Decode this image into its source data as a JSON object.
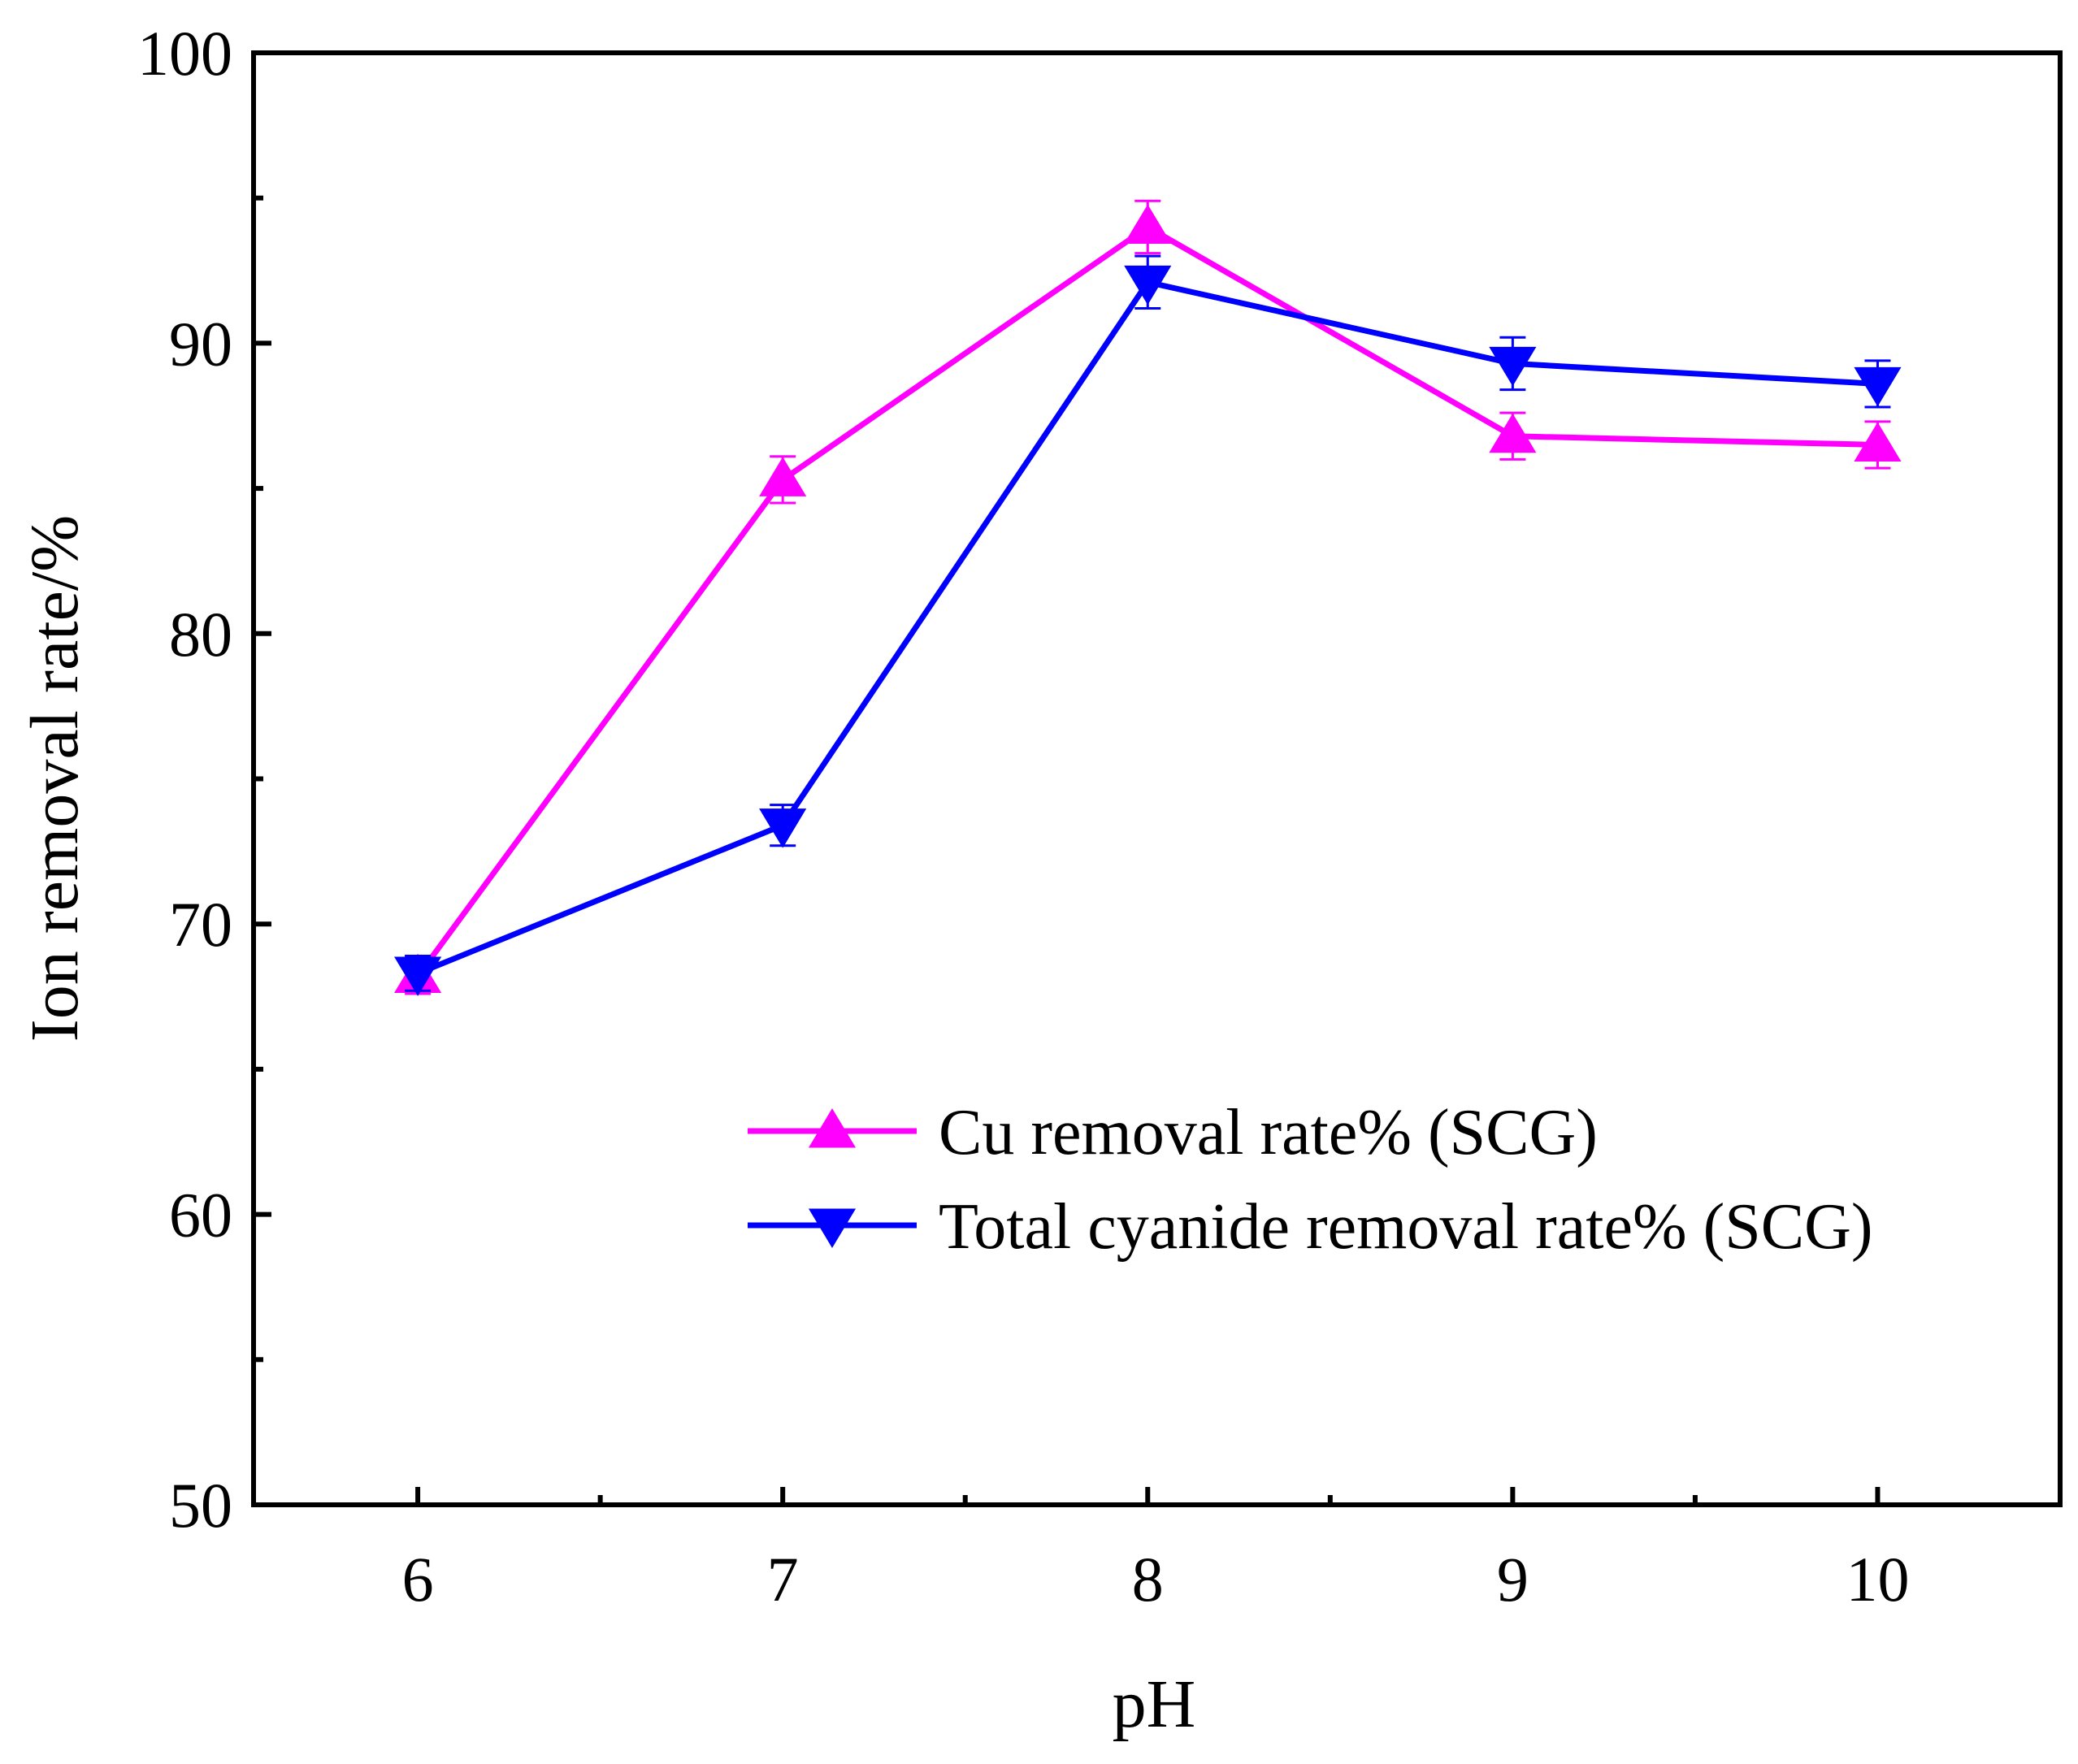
{
  "chart_data": {
    "type": "line",
    "xlabel": "pH",
    "ylabel": "Ion removal rate/%",
    "xlim": [
      5.55,
      10.5
    ],
    "ylim": [
      50,
      100
    ],
    "x_ticks": [
      6,
      7,
      8,
      9,
      10
    ],
    "x_tick_labels": [
      "6",
      "7",
      "8",
      "9",
      "10"
    ],
    "x_minor_ticks": [
      6.5,
      7.5,
      8.5,
      9.5
    ],
    "y_ticks": [
      50,
      60,
      70,
      80,
      90,
      100
    ],
    "y_tick_labels": [
      "50",
      "60",
      "70",
      "80",
      "90",
      "100"
    ],
    "y_minor_ticks": [
      55,
      65,
      75,
      85,
      95
    ],
    "grid": false,
    "legend_position": "center-right",
    "series": [
      {
        "name": "Cu removal rate% (SCG)",
        "color": "#FF00FF",
        "marker": "triangle-up",
        "x": [
          6,
          7,
          8,
          9,
          10
        ],
        "y": [
          68.2,
          85.3,
          94.0,
          86.8,
          86.5
        ],
        "error": [
          0.6,
          0.8,
          0.9,
          0.8,
          0.8
        ]
      },
      {
        "name": "Total cyanide removal rate% (SCG)",
        "color": "#0000FF",
        "marker": "triangle-down",
        "x": [
          6,
          7,
          8,
          9,
          10
        ],
        "y": [
          68.3,
          73.4,
          92.1,
          89.3,
          88.6
        ],
        "error": [
          0.6,
          0.7,
          0.9,
          0.9,
          0.8
        ]
      }
    ]
  }
}
